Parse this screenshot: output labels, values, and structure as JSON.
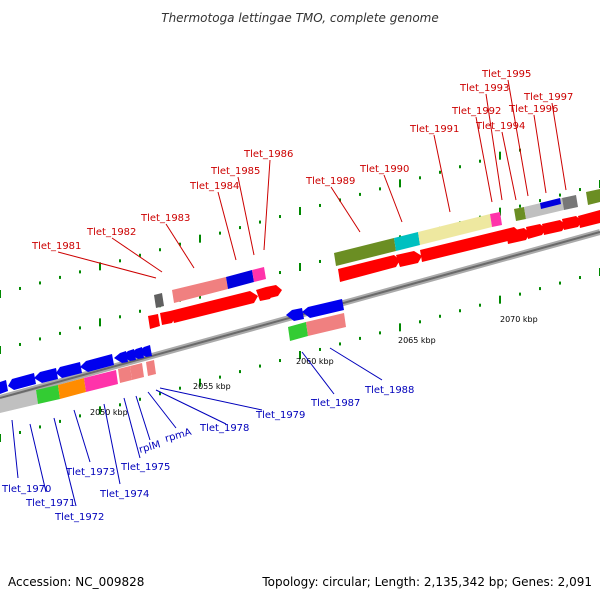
{
  "title": "Thermotoga lettingae TMO, complete genome",
  "accession_text": "Accession: NC_009828",
  "summary_text": "Topology: circular; Length: 2,135,342 bp; Genes: 2,091",
  "colors": {
    "top_label": "#cc0000",
    "bottom_label": "#0000bb",
    "track": "#888888",
    "forward": "#ff0000",
    "reverse": "#0000ee",
    "tick": "#008800"
  },
  "scale_labels": [
    "2050 kbp",
    "2055 kbp",
    "2060 kbp",
    "2065 kbp",
    "2070 kbp"
  ],
  "top_labels": [
    "Tlet_1981",
    "Tlet_1982",
    "Tlet_1983",
    "Tlet_1984",
    "Tlet_1985",
    "Tlet_1986",
    "Tlet_1989",
    "Tlet_1990",
    "Tlet_1991",
    "Tlet_1992",
    "Tlet_1993",
    "Tlet_1994",
    "Tlet_1995",
    "Tlet_1996",
    "Tlet_1997"
  ],
  "bottom_labels": [
    "Tlet_1970",
    "Tlet_1971",
    "Tlet_1972",
    "Tlet_1973",
    "Tlet_1974",
    "Tlet_1975",
    "rplM",
    "rpmA",
    "Tlet_1978",
    "Tlet_1979",
    "Tlet_1987",
    "Tlet_1988"
  ]
}
